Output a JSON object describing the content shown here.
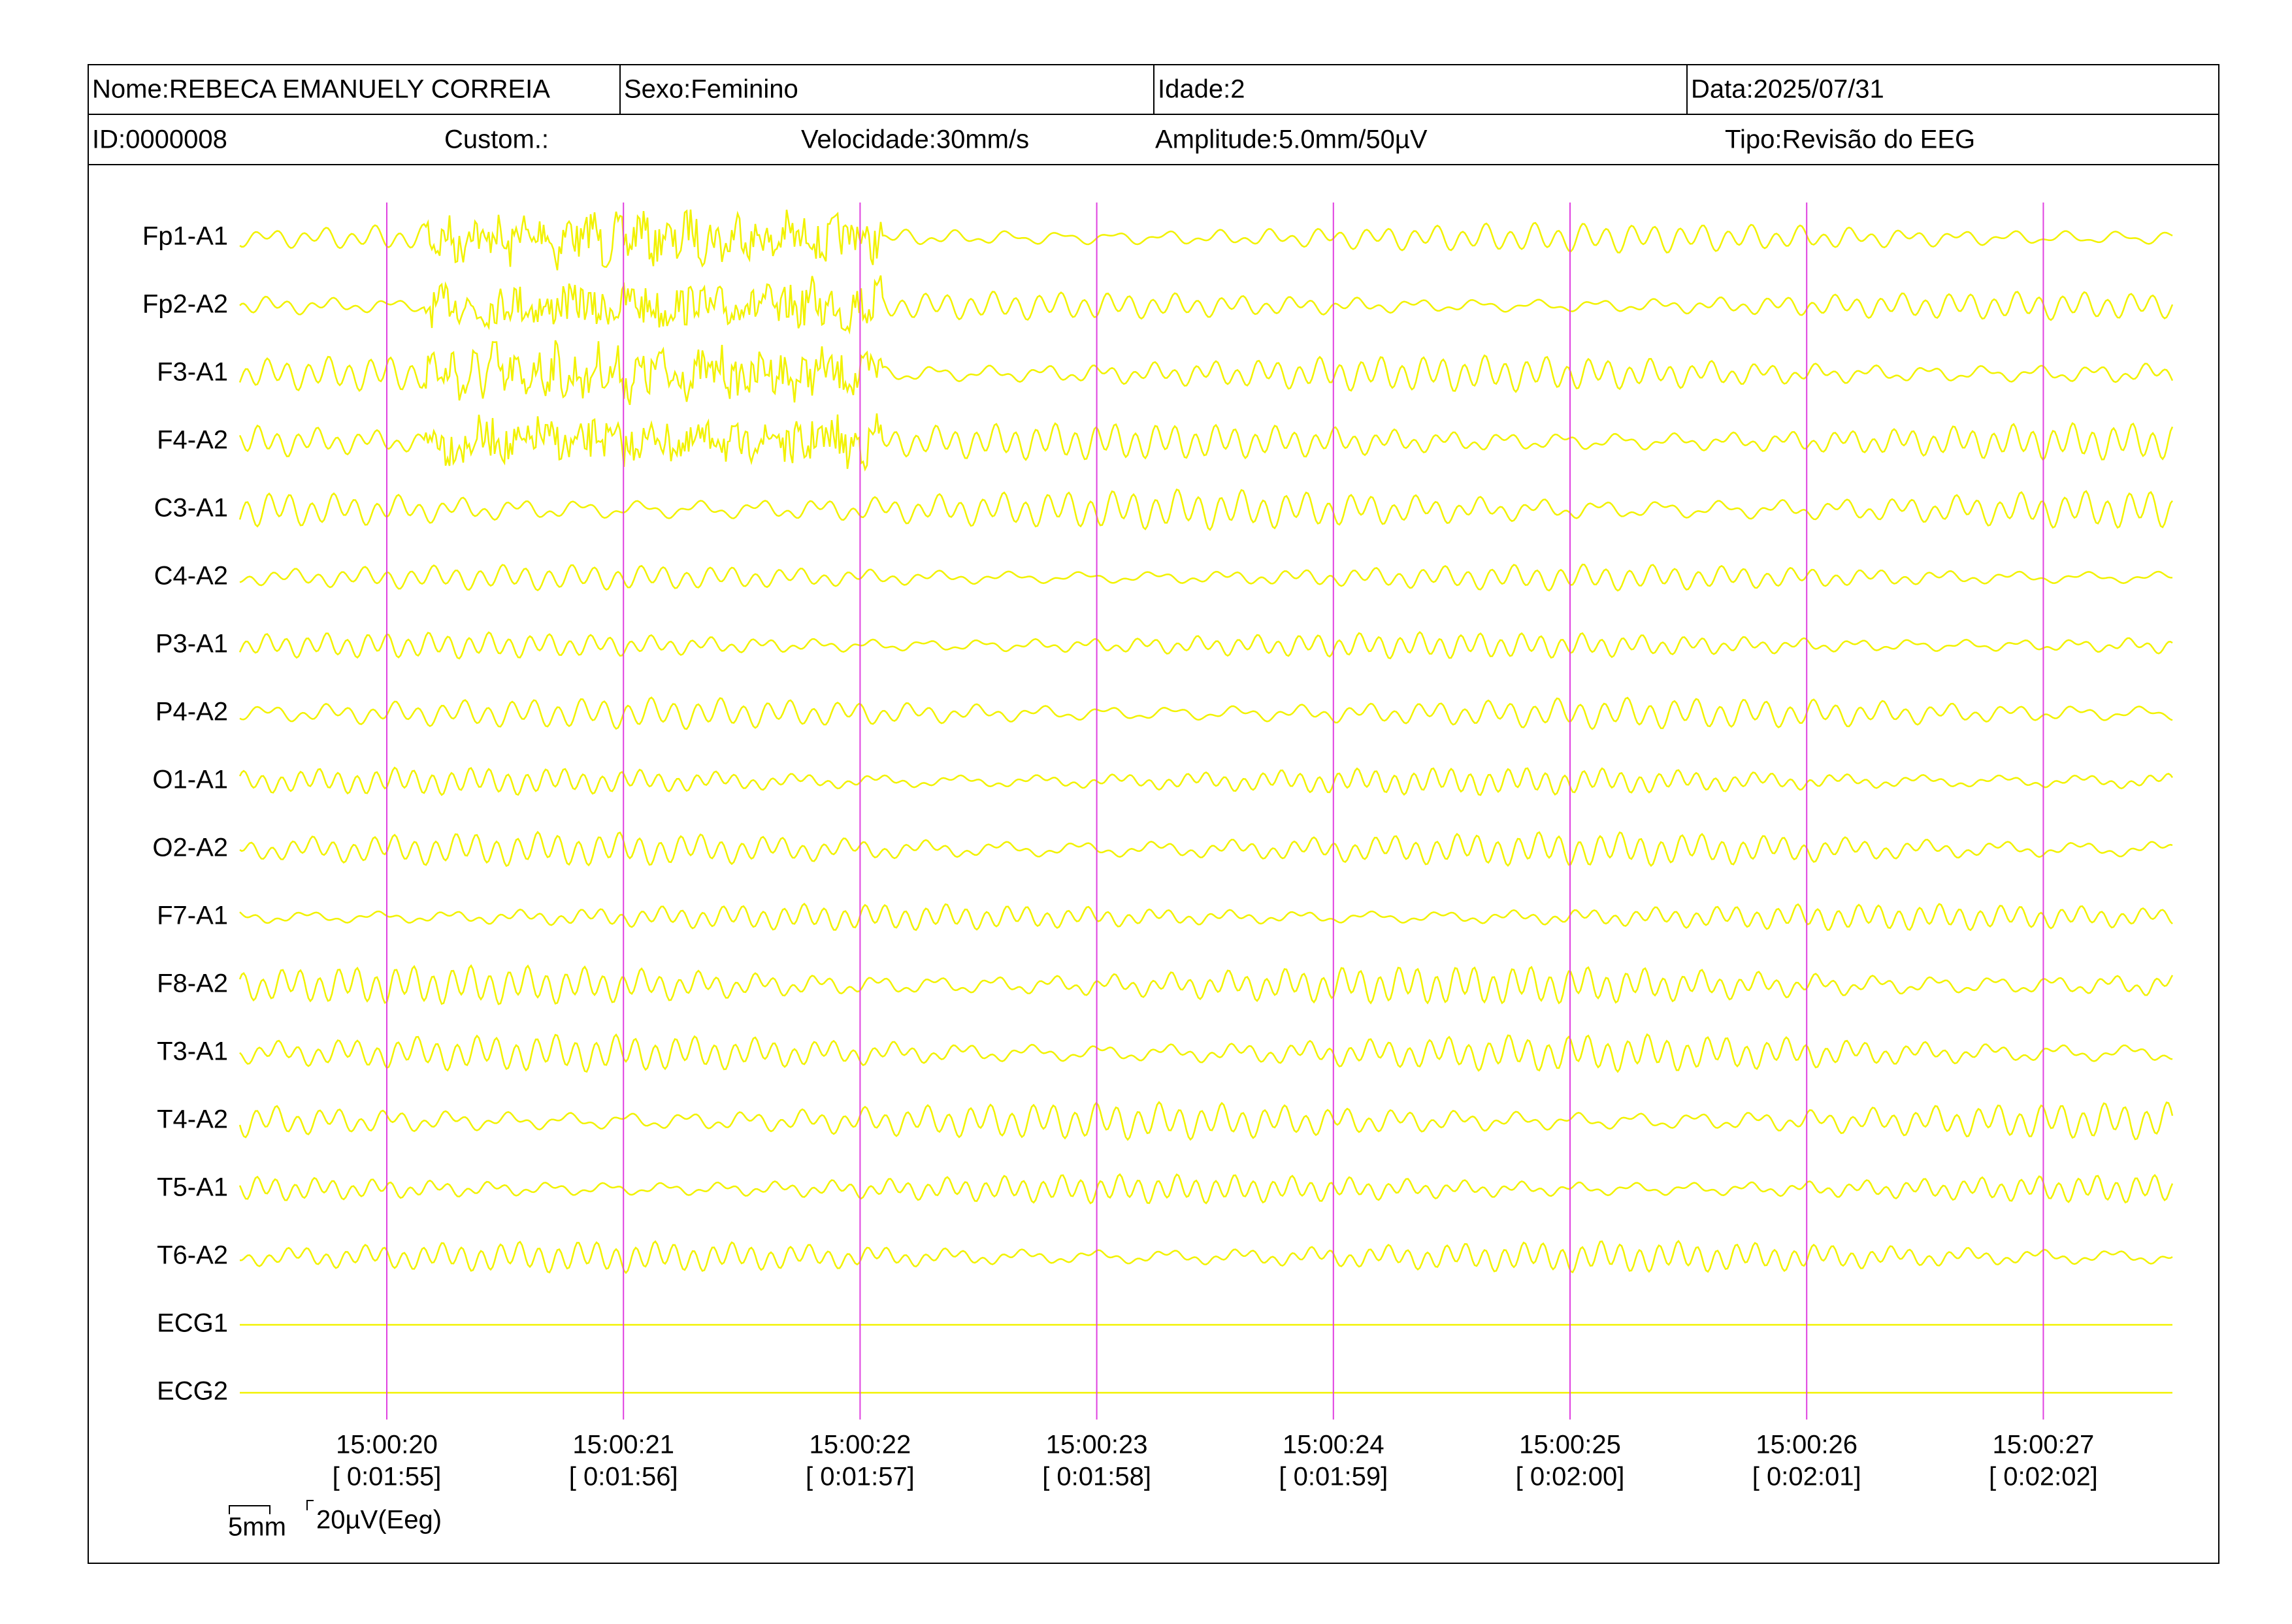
{
  "header": {
    "name": "Nome:REBECA EMANUELY CORREIA",
    "sex": "Sexo:Feminino",
    "age": "Idade:2",
    "date": "Data:2025/07/31",
    "id": "ID:0000008",
    "custom": "Custom.:",
    "speed": "Velocidade:30mm/s",
    "amplitude": "Amplitude:5.0mm/50µV",
    "type": "Tipo:Revisão do EEG"
  },
  "channels": [
    "Fp1-A1",
    "Fp2-A2",
    "F3-A1",
    "F4-A2",
    "C3-A1",
    "C4-A2",
    "P3-A1",
    "P4-A2",
    "O1-A1",
    "O2-A2",
    "F7-A1",
    "F8-A2",
    "T3-A1",
    "T4-A2",
    "T5-A1",
    "T6-A2",
    "ECG1",
    "ECG2"
  ],
  "time_marks": [
    {
      "time": "15:00:20",
      "elapsed": "[ 0:01:55]"
    },
    {
      "time": "15:00:21",
      "elapsed": "[ 0:01:56]"
    },
    {
      "time": "15:00:22",
      "elapsed": "[ 0:01:57]"
    },
    {
      "time": "15:00:23",
      "elapsed": "[ 0:01:58]"
    },
    {
      "time": "15:00:24",
      "elapsed": "[ 0:01:59]"
    },
    {
      "time": "15:00:25",
      "elapsed": "[ 0:02:00]"
    },
    {
      "time": "15:00:26",
      "elapsed": "[ 0:02:01]"
    },
    {
      "time": "15:00:27",
      "elapsed": "[ 0:02:02]"
    }
  ],
  "scale": {
    "length": "5mm",
    "amplitude": "20µV(Eeg)"
  }
}
